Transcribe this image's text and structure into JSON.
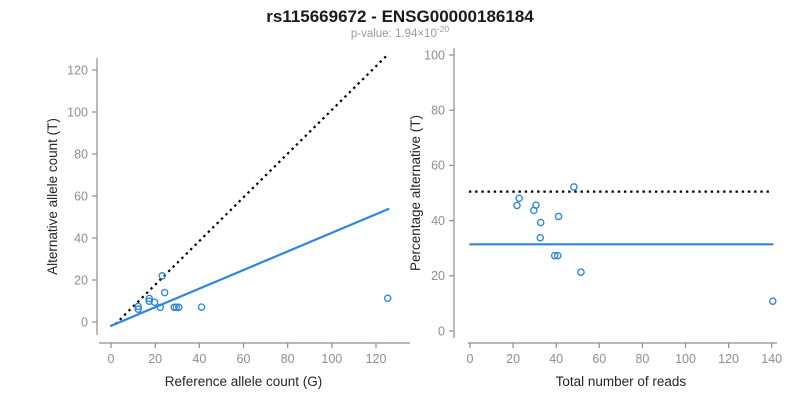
{
  "header": {
    "title": "rs115669672 - ENSG00000186184",
    "p_label": "p-value: 1.94×10",
    "p_exponent": "-20"
  },
  "colors": {
    "accent_blue": "#2E86DE",
    "axis_gray": "#8e8e8e",
    "tick_label_gray": "#8e8e8e",
    "label_dark": "#262626",
    "title_black": "#1a1a1a",
    "subtitle_gray": "#9b9b9b",
    "dotted_black": "#000000",
    "background": "#ffffff"
  },
  "chart_data": [
    {
      "type": "scatter",
      "name": "allele-counts-scatter",
      "xlabel": "Reference allele count (G)",
      "ylabel": "Alternative allele count (T)",
      "xlim": [
        -5,
        131
      ],
      "ylim": [
        -5,
        131
      ],
      "xticks": [
        0,
        20,
        40,
        60,
        80,
        100,
        120
      ],
      "yticks": [
        0,
        20,
        40,
        60,
        80,
        100,
        120
      ],
      "grid": false,
      "legend": null,
      "marker": "open-circle",
      "points": [
        [
          23.2,
          22.0
        ],
        [
          24.3,
          14.0
        ],
        [
          17.3,
          11.2
        ],
        [
          17.3,
          9.9
        ],
        [
          19.7,
          9.4
        ],
        [
          12.3,
          7.4
        ],
        [
          12.3,
          6.1
        ],
        [
          22.3,
          7.0
        ],
        [
          28.6,
          7.0
        ],
        [
          29.6,
          7.0
        ],
        [
          30.7,
          7.0
        ],
        [
          41.0,
          7.1
        ],
        [
          125.3,
          11.3
        ]
      ],
      "lines": [
        {
          "name": "identity-line",
          "style": "dotted",
          "color_key": "dotted_black",
          "x1": 2.0,
          "y1": -1.0,
          "x2": 125.0,
          "y2": 127.0
        },
        {
          "name": "fit-line",
          "style": "solid",
          "color_key": "accent_blue",
          "x1": -0.4,
          "y1": -2.0,
          "x2": 126.0,
          "y2": 54.0
        }
      ]
    },
    {
      "type": "scatter",
      "name": "percentage-alternative-scatter",
      "xlabel": "Total number of reads",
      "ylabel": "Percentage alternative (T)",
      "xlim": [
        -6,
        146
      ],
      "ylim": [
        0,
        100
      ],
      "xticks": [
        0,
        20,
        40,
        60,
        80,
        100,
        120,
        140
      ],
      "yticks": [
        0,
        20,
        40,
        60,
        80,
        100
      ],
      "grid": false,
      "legend": null,
      "marker": "open-circle",
      "points": [
        [
          48.2,
          52.2
        ],
        [
          22.8,
          48.1
        ],
        [
          21.8,
          45.5
        ],
        [
          30.6,
          45.6
        ],
        [
          29.6,
          43.7
        ],
        [
          41.1,
          41.5
        ],
        [
          32.8,
          39.3
        ],
        [
          32.6,
          33.8
        ],
        [
          39.3,
          27.3
        ],
        [
          40.7,
          27.3
        ],
        [
          51.5,
          21.3
        ],
        [
          140.5,
          10.8
        ]
      ],
      "lines": [
        {
          "name": "expected-50pct-line",
          "style": "dotted",
          "color_key": "dotted_black",
          "x1": -0.5,
          "y1": 50.5,
          "x2": 139.2,
          "y2": 50.5
        },
        {
          "name": "observed-ratio-line",
          "style": "solid",
          "color_key": "accent_blue",
          "x1": -0.3,
          "y1": 31.4,
          "x2": 140.8,
          "y2": 31.4
        }
      ]
    }
  ]
}
